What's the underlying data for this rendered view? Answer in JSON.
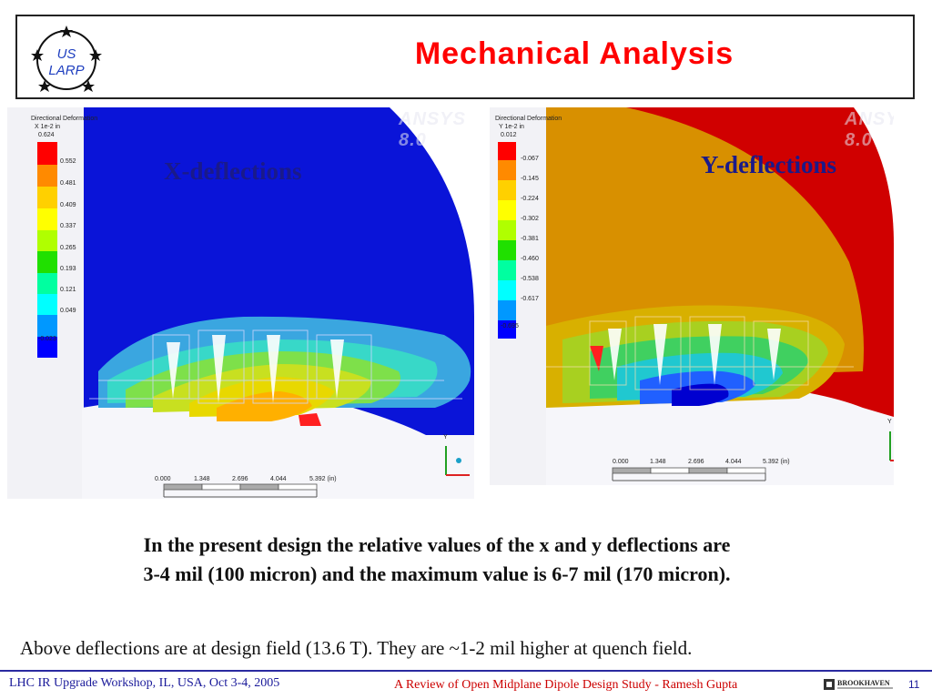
{
  "header": {
    "title": "Mechanical Analysis",
    "logo_text_top": "US",
    "logo_text_bottom": "LARP"
  },
  "plots": {
    "left": {
      "label": "X-deflections",
      "legend_title_line1": "Directional Deformation",
      "legend_title_line2": "X 1e-2 in",
      "legend_values": [
        "0.624",
        "0.552",
        "0.481",
        "0.409",
        "0.337",
        "0.265",
        "0.193",
        "0.121",
        "0.049",
        "-0.023"
      ],
      "scale_labels": [
        "0.000",
        "1.348",
        "2.696",
        "4.044",
        "5.392 (in)"
      ],
      "watermark": "ANSYS 8.0"
    },
    "right": {
      "label": "Y-deflections",
      "legend_title_line1": "Directional Deformation",
      "legend_title_line2": "Y 1e-2 in",
      "legend_values": [
        "0.012",
        "-0.067",
        "-0.145",
        "-0.224",
        "-0.302",
        "-0.381",
        "-0.460",
        "-0.538",
        "-0.617",
        "-0.695"
      ],
      "scale_labels": [
        "0.000",
        "1.348",
        "2.696",
        "4.044",
        "5.392 (in)"
      ],
      "watermark": "ANSYS 8.0"
    },
    "legend_colors": [
      "#ff0000",
      "#ff8a00",
      "#ffd000",
      "#ffff00",
      "#b0ff00",
      "#20e000",
      "#00ffa0",
      "#00ffff",
      "#0098ff",
      "#0000ff"
    ],
    "axis_label_y": "Y"
  },
  "body": {
    "main_line1": "In the present design the relative values of the x and y deflections are",
    "main_line2": "3-4 mil (100 micron) and the maximum value is 6-7 mil (170 micron).",
    "note": "Above deflections are at design field (13.6 T). They are ~1-2 mil higher at quench field."
  },
  "footer": {
    "left": "LHC IR Upgrade Workshop, IL, USA,  Oct 3-4, 2005",
    "middle_title": "A Review of Open Midplane Dipole Design Study",
    "middle_sep": " - ",
    "middle_author": "Ramesh Gupta",
    "logo_text": "BROOKHAVEN",
    "page_number": "11"
  }
}
